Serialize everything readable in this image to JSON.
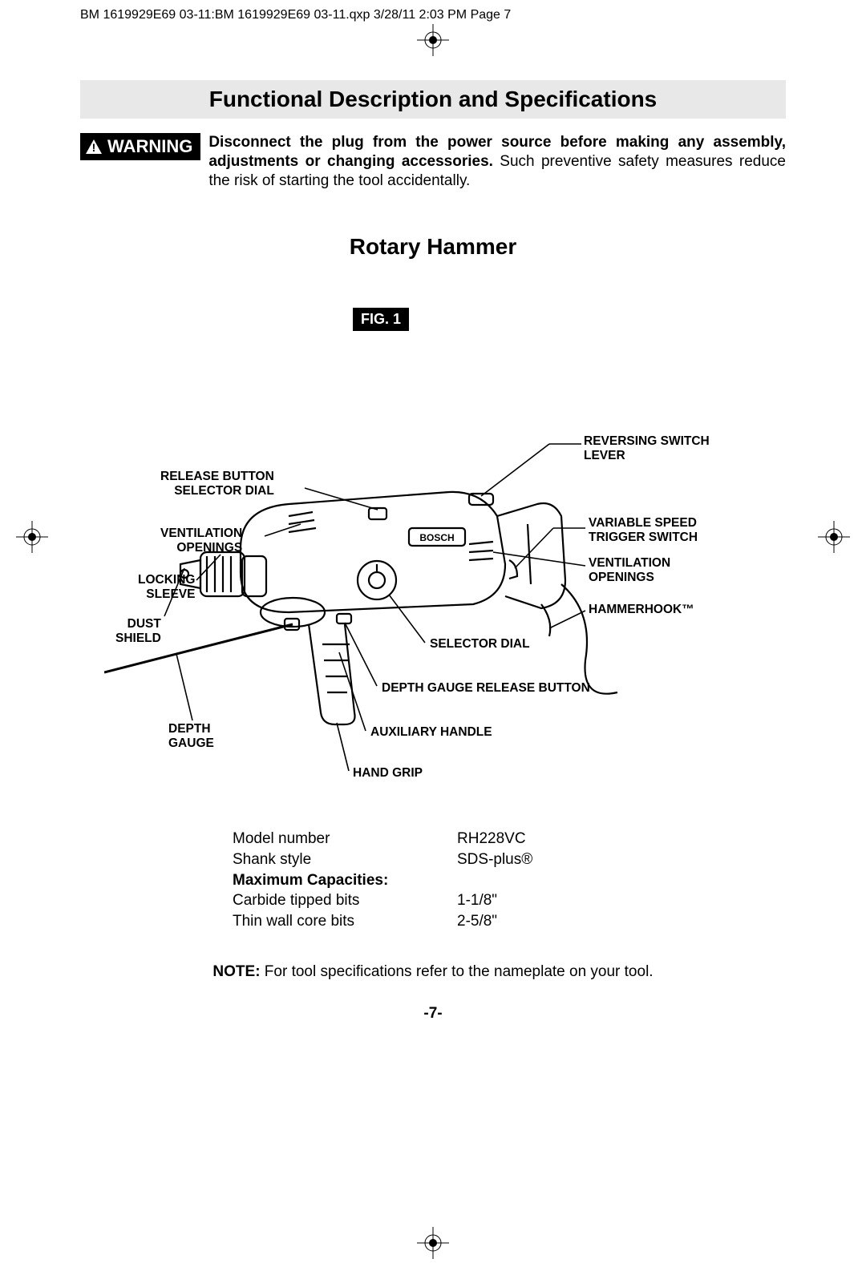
{
  "header": "BM 1619929E69 03-11:BM 1619929E69 03-11.qxp  3/28/11  2:03 PM  Page 7",
  "titleBar": "Functional Description and Specifications",
  "warningLabel": "WARNING",
  "warningBold": "Disconnect the plug from the power source before making any assembly, adjustments or changing accessories.",
  "warningRest": "  Such preventive safety measures reduce the risk of starting the tool accidentally.",
  "subheading": "Rotary Hammer",
  "figLabel": "FIG. 1",
  "callouts": {
    "reversing": "REVERSING SWITCH\nLEVER",
    "releaseBtn": "RELEASE BUTTON\nSELECTOR DIAL",
    "variable": "VARIABLE SPEED\nTRIGGER SWITCH",
    "ventLeft": "VENTILATION\nOPENINGS",
    "ventRight": "VENTILATION\nOPENINGS",
    "locking": "LOCKING\nSLEEVE",
    "hammerhook": "HAMMERHOOK™",
    "dust": "DUST\nSHIELD",
    "selectorDial": "SELECTOR DIAL",
    "depthRelease": "DEPTH GAUGE RELEASE BUTTON",
    "depthGauge": "DEPTH\nGAUGE",
    "auxHandle": "AUXILIARY HANDLE",
    "handGrip": "HAND GRIP"
  },
  "specs": {
    "rows": [
      {
        "label": "Model number",
        "value": "RH228VC"
      },
      {
        "label": "Shank style",
        "value": "SDS-plus®"
      }
    ],
    "maxHeading": "Maximum Capacities:",
    "maxRows": [
      {
        "label": "Carbide tipped bits",
        "value": "1-1/8\""
      },
      {
        "label": "Thin wall core bits",
        "value": "2-5/8\""
      }
    ]
  },
  "noteBold": "NOTE:",
  "noteText": " For tool specifications refer to the nameplate on your tool.",
  "pageNum": "-7-"
}
